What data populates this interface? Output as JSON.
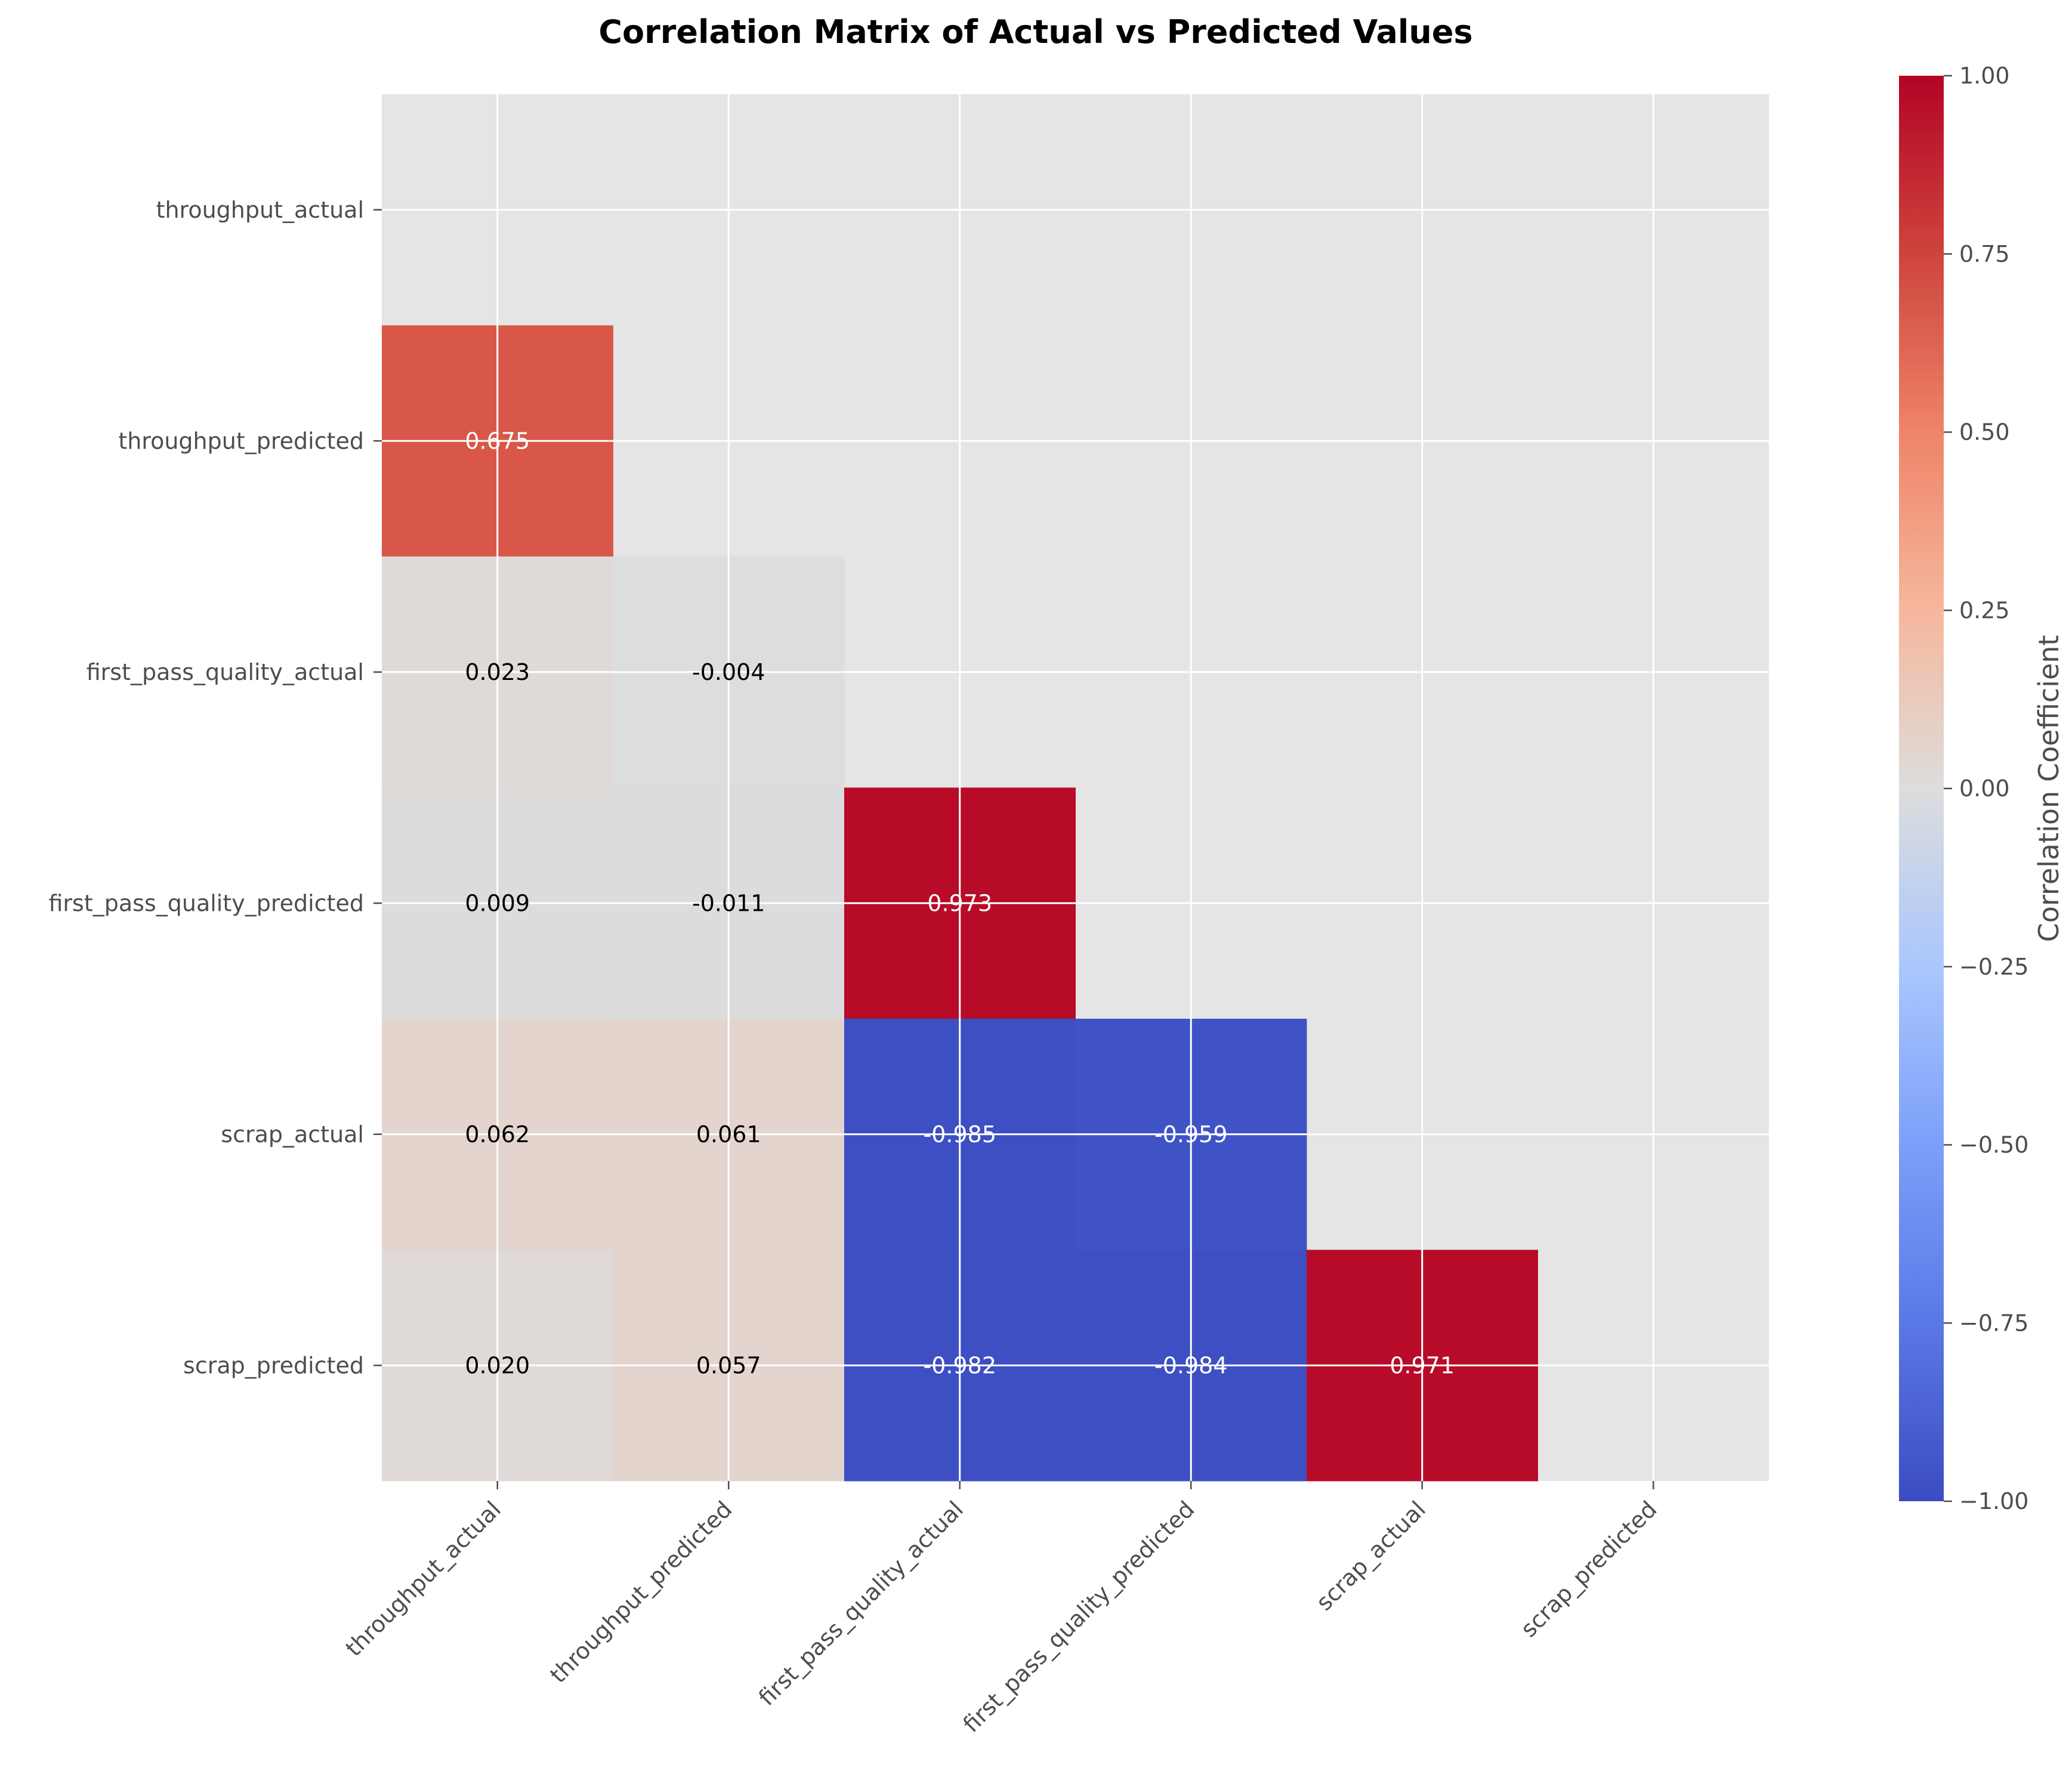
{
  "chart_data": {
    "type": "heatmap",
    "title": "Correlation Matrix of Actual vs Predicted Values",
    "labels": [
      "throughput_actual",
      "throughput_predicted",
      "first_pass_quality_actual",
      "first_pass_quality_predicted",
      "scrap_actual",
      "scrap_predicted"
    ],
    "mask": "upper-triangle-including-diagonal",
    "values": [
      [
        null,
        null,
        null,
        null,
        null,
        null
      ],
      [
        0.675,
        null,
        null,
        null,
        null,
        null
      ],
      [
        0.023,
        -0.004,
        null,
        null,
        null,
        null
      ],
      [
        0.009,
        -0.011,
        0.973,
        null,
        null,
        null
      ],
      [
        0.062,
        0.061,
        -0.985,
        -0.959,
        null,
        null
      ],
      [
        0.02,
        0.057,
        -0.982,
        -0.984,
        0.971,
        null
      ]
    ],
    "value_labels": [
      [
        null,
        null,
        null,
        null,
        null,
        null
      ],
      [
        "0.675",
        null,
        null,
        null,
        null,
        null
      ],
      [
        "0.023",
        "-0.004",
        null,
        null,
        null,
        null
      ],
      [
        "0.009",
        "-0.011",
        "0.973",
        null,
        null,
        null
      ],
      [
        "0.062",
        "0.061",
        "-0.985",
        "-0.959",
        null,
        null
      ],
      [
        "0.020",
        "0.057",
        "-0.982",
        "-0.984",
        "0.971",
        null
      ]
    ],
    "colormap": "coolwarm",
    "vmin": -1.0,
    "vmax": 1.0,
    "colorbar": {
      "label": "Correlation Coefficient",
      "ticks": [
        1.0,
        0.75,
        0.5,
        0.25,
        0.0,
        -0.25,
        -0.5,
        -0.75,
        -1.0
      ],
      "tick_labels": [
        "1.00",
        "0.75",
        "0.50",
        "0.25",
        "0.00",
        "−0.25",
        "−0.50",
        "−0.75",
        "−1.00"
      ]
    },
    "grid": true,
    "background_color": "#e5e5e5"
  }
}
